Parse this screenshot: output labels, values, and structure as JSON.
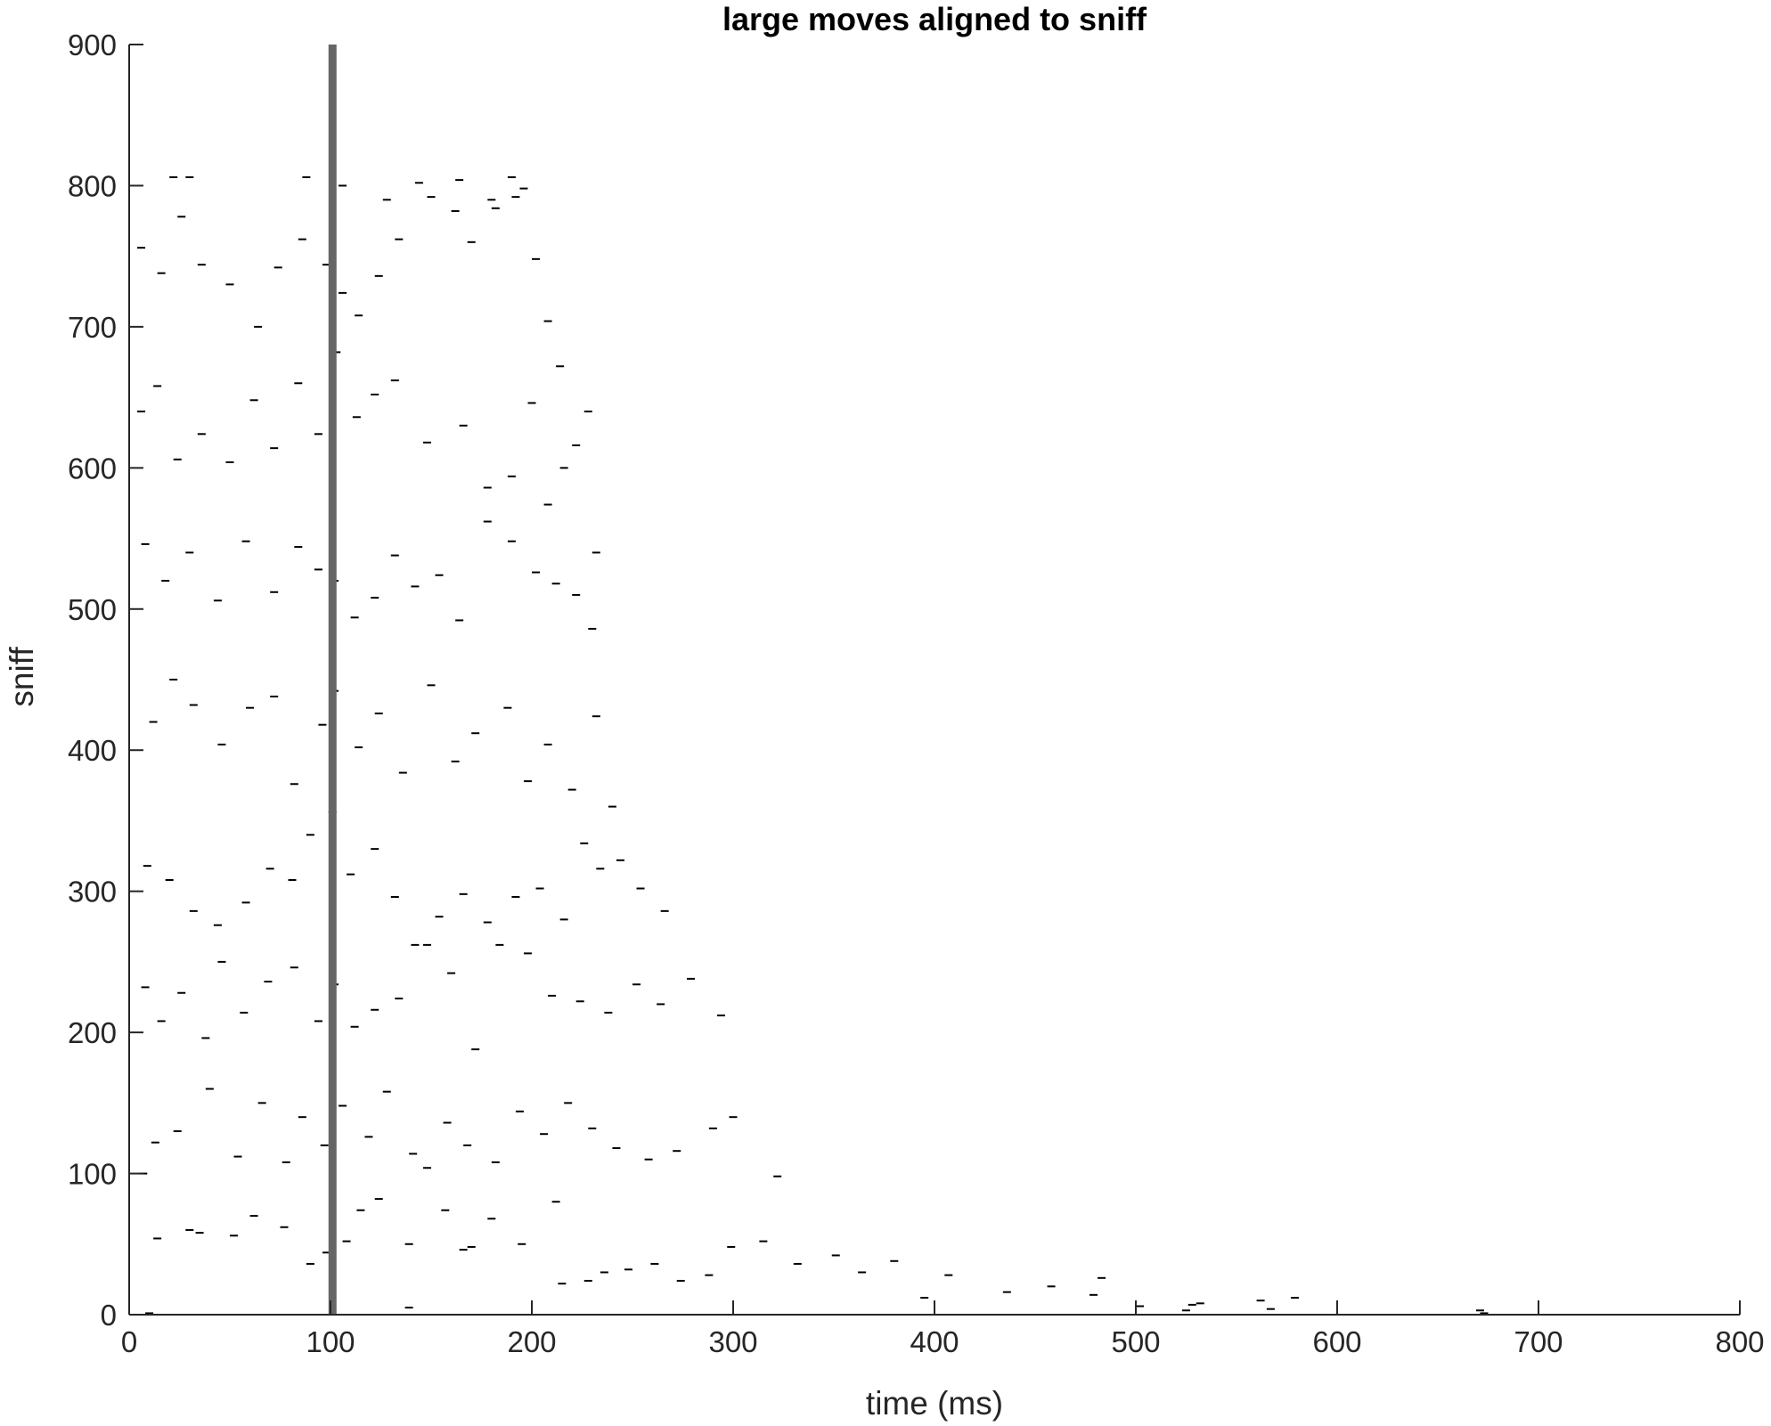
{
  "chart_data": {
    "type": "scatter",
    "title": "large moves aligned to sniff",
    "xlabel": "time (ms)",
    "ylabel": "sniff",
    "xlim": [
      0,
      800
    ],
    "ylim": [
      0,
      900
    ],
    "xticks": [
      "0",
      "100",
      "200",
      "300",
      "400",
      "500",
      "600",
      "700",
      "800"
    ],
    "yticks": [
      "0",
      "100",
      "200",
      "300",
      "400",
      "500",
      "600",
      "700",
      "800",
      "900"
    ],
    "grid": false,
    "legend": "none",
    "marker": "short horizontal dash per event",
    "reference_line": {
      "x": 101,
      "color": "#666666"
    },
    "colors": {
      "marks": "#000000",
      "axes": "#262626"
    },
    "series": [
      {
        "points": [
          [
            8,
            1
          ],
          [
            137,
            5
          ],
          [
            523,
            3
          ],
          [
            526,
            7
          ],
          [
            565,
            4
          ],
          [
            577,
            12
          ],
          [
            669,
            3
          ],
          [
            671,
            1
          ],
          [
            12,
            54
          ],
          [
            28,
            60
          ],
          [
            33,
            58
          ],
          [
            50,
            56
          ],
          [
            60,
            70
          ],
          [
            75,
            62
          ],
          [
            88,
            36
          ],
          [
            96,
            44
          ],
          [
            106,
            52
          ],
          [
            113,
            74
          ],
          [
            122,
            82
          ],
          [
            137,
            50
          ],
          [
            155,
            74
          ],
          [
            164,
            46
          ],
          [
            168,
            48
          ],
          [
            178,
            68
          ],
          [
            193,
            50
          ],
          [
            210,
            80
          ],
          [
            213,
            22
          ],
          [
            226,
            24
          ],
          [
            234,
            30
          ],
          [
            246,
            32
          ],
          [
            259,
            36
          ],
          [
            272,
            24
          ],
          [
            286,
            28
          ],
          [
            297,
            48
          ],
          [
            313,
            52
          ],
          [
            330,
            36
          ],
          [
            349,
            42
          ],
          [
            362,
            30
          ],
          [
            378,
            38
          ],
          [
            393,
            12
          ],
          [
            405,
            28
          ],
          [
            434,
            16
          ],
          [
            456,
            20
          ],
          [
            477,
            14
          ],
          [
            481,
            26
          ],
          [
            500,
            6
          ],
          [
            530,
            8
          ],
          [
            560,
            10
          ],
          [
            5,
            100
          ],
          [
            11,
            122
          ],
          [
            22,
            130
          ],
          [
            38,
            160
          ],
          [
            52,
            112
          ],
          [
            64,
            150
          ],
          [
            76,
            108
          ],
          [
            84,
            140
          ],
          [
            95,
            120
          ],
          [
            104,
            148
          ],
          [
            117,
            126
          ],
          [
            126,
            158
          ],
          [
            139,
            114
          ],
          [
            146,
            104
          ],
          [
            156,
            136
          ],
          [
            166,
            120
          ],
          [
            180,
            108
          ],
          [
            192,
            144
          ],
          [
            204,
            128
          ],
          [
            216,
            150
          ],
          [
            228,
            132
          ],
          [
            240,
            118
          ],
          [
            256,
            110
          ],
          [
            270,
            116
          ],
          [
            288,
            132
          ],
          [
            298,
            140
          ],
          [
            320,
            98
          ],
          [
            6,
            232
          ],
          [
            14,
            208
          ],
          [
            24,
            228
          ],
          [
            36,
            196
          ],
          [
            44,
            250
          ],
          [
            55,
            214
          ],
          [
            67,
            236
          ],
          [
            80,
            246
          ],
          [
            92,
            208
          ],
          [
            100,
            234
          ],
          [
            110,
            204
          ],
          [
            120,
            216
          ],
          [
            132,
            224
          ],
          [
            146,
            262
          ],
          [
            158,
            242
          ],
          [
            170,
            188
          ],
          [
            182,
            262
          ],
          [
            196,
            256
          ],
          [
            208,
            226
          ],
          [
            222,
            222
          ],
          [
            236,
            214
          ],
          [
            250,
            234
          ],
          [
            262,
            220
          ],
          [
            277,
            238
          ],
          [
            292,
            212
          ],
          [
            7,
            318
          ],
          [
            18,
            308
          ],
          [
            30,
            286
          ],
          [
            42,
            276
          ],
          [
            56,
            292
          ],
          [
            68,
            316
          ],
          [
            79,
            308
          ],
          [
            88,
            340
          ],
          [
            99,
            356
          ],
          [
            108,
            312
          ],
          [
            120,
            330
          ],
          [
            130,
            296
          ],
          [
            140,
            262
          ],
          [
            152,
            282
          ],
          [
            164,
            298
          ],
          [
            176,
            278
          ],
          [
            190,
            296
          ],
          [
            202,
            302
          ],
          [
            214,
            280
          ],
          [
            224,
            334
          ],
          [
            232,
            316
          ],
          [
            242,
            322
          ],
          [
            252,
            302
          ],
          [
            264,
            286
          ],
          [
            10,
            420
          ],
          [
            20,
            450
          ],
          [
            30,
            432
          ],
          [
            44,
            404
          ],
          [
            58,
            430
          ],
          [
            70,
            438
          ],
          [
            80,
            376
          ],
          [
            94,
            418
          ],
          [
            100,
            442
          ],
          [
            112,
            402
          ],
          [
            122,
            426
          ],
          [
            134,
            384
          ],
          [
            148,
            446
          ],
          [
            160,
            392
          ],
          [
            170,
            412
          ],
          [
            186,
            430
          ],
          [
            196,
            378
          ],
          [
            206,
            404
          ],
          [
            218,
            372
          ],
          [
            230,
            424
          ],
          [
            238,
            360
          ],
          [
            6,
            546
          ],
          [
            16,
            520
          ],
          [
            28,
            540
          ],
          [
            42,
            506
          ],
          [
            56,
            548
          ],
          [
            70,
            512
          ],
          [
            82,
            544
          ],
          [
            92,
            528
          ],
          [
            100,
            520
          ],
          [
            110,
            494
          ],
          [
            120,
            508
          ],
          [
            130,
            538
          ],
          [
            140,
            516
          ],
          [
            152,
            524
          ],
          [
            162,
            492
          ],
          [
            176,
            562
          ],
          [
            188,
            548
          ],
          [
            200,
            526
          ],
          [
            210,
            518
          ],
          [
            220,
            510
          ],
          [
            228,
            486
          ],
          [
            230,
            540
          ],
          [
            4,
            640
          ],
          [
            12,
            658
          ],
          [
            22,
            606
          ],
          [
            34,
            624
          ],
          [
            48,
            604
          ],
          [
            60,
            648
          ],
          [
            70,
            614
          ],
          [
            82,
            660
          ],
          [
            92,
            624
          ],
          [
            101,
            682
          ],
          [
            111,
            636
          ],
          [
            120,
            652
          ],
          [
            130,
            662
          ],
          [
            146,
            618
          ],
          [
            164,
            630
          ],
          [
            176,
            586
          ],
          [
            188,
            594
          ],
          [
            198,
            646
          ],
          [
            206,
            574
          ],
          [
            214,
            600
          ],
          [
            220,
            616
          ],
          [
            226,
            640
          ],
          [
            4,
            756
          ],
          [
            14,
            738
          ],
          [
            24,
            778
          ],
          [
            34,
            744
          ],
          [
            48,
            730
          ],
          [
            62,
            700
          ],
          [
            72,
            742
          ],
          [
            84,
            762
          ],
          [
            96,
            744
          ],
          [
            104,
            724
          ],
          [
            112,
            708
          ],
          [
            122,
            736
          ],
          [
            132,
            762
          ],
          [
            148,
            792
          ],
          [
            160,
            782
          ],
          [
            168,
            760
          ],
          [
            180,
            784
          ],
          [
            190,
            792
          ],
          [
            200,
            748
          ],
          [
            206,
            704
          ],
          [
            212,
            672
          ],
          [
            20,
            806
          ],
          [
            28,
            806
          ],
          [
            86,
            806
          ],
          [
            104,
            800
          ],
          [
            126,
            790
          ],
          [
            142,
            802
          ],
          [
            162,
            804
          ],
          [
            178,
            790
          ],
          [
            188,
            806
          ],
          [
            194,
            798
          ]
        ]
      }
    ]
  }
}
